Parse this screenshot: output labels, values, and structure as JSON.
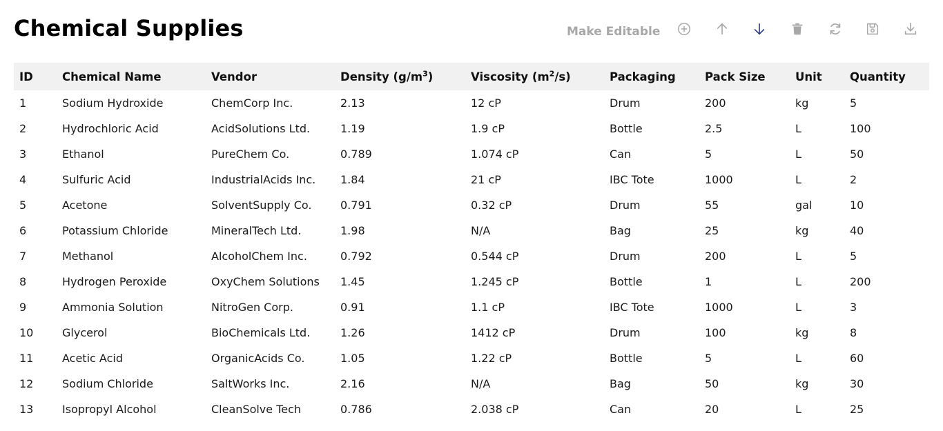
{
  "page": {
    "title": "Chemical Supplies"
  },
  "toolbar": {
    "edit_label": "Make Editable",
    "icon_color": "#a7a7a7",
    "active_icon_color": "#2a3a8f",
    "icons": [
      "add-circle-icon",
      "arrow-up-icon",
      "arrow-down-icon",
      "trash-icon",
      "refresh-icon",
      "save-icon",
      "download-icon"
    ]
  },
  "table": {
    "header_bg": "#f1f1f1",
    "columns": [
      {
        "label": "ID"
      },
      {
        "label": "Chemical Name"
      },
      {
        "label": "Vendor"
      },
      {
        "label": "Density (g/m",
        "sup": "3",
        "suffix": ")"
      },
      {
        "label": "Viscosity (m",
        "sup": "2",
        "suffix": "/s)"
      },
      {
        "label": "Packaging"
      },
      {
        "label": "Pack Size"
      },
      {
        "label": "Unit"
      },
      {
        "label": "Quantity"
      }
    ],
    "rows": [
      [
        "1",
        "Sodium Hydroxide",
        "ChemCorp Inc.",
        "2.13",
        "12 cP",
        "Drum",
        "200",
        "kg",
        "5"
      ],
      [
        "2",
        "Hydrochloric Acid",
        "AcidSolutions Ltd.",
        "1.19",
        "1.9 cP",
        "Bottle",
        "2.5",
        "L",
        "100"
      ],
      [
        "3",
        "Ethanol",
        "PureChem Co.",
        "0.789",
        "1.074 cP",
        "Can",
        "5",
        "L",
        "50"
      ],
      [
        "4",
        "Sulfuric Acid",
        "IndustrialAcids Inc.",
        "1.84",
        "21 cP",
        "IBC Tote",
        "1000",
        "L",
        "2"
      ],
      [
        "5",
        "Acetone",
        "SolventSupply Co.",
        "0.791",
        "0.32 cP",
        "Drum",
        "55",
        "gal",
        "10"
      ],
      [
        "6",
        "Potassium Chloride",
        "MineralTech Ltd.",
        "1.98",
        "N/A",
        "Bag",
        "25",
        "kg",
        "40"
      ],
      [
        "7",
        "Methanol",
        "AlcoholChem Inc.",
        "0.792",
        "0.544 cP",
        "Drum",
        "200",
        "L",
        "5"
      ],
      [
        "8",
        "Hydrogen Peroxide",
        "OxyChem Solutions",
        "1.45",
        "1.245 cP",
        "Bottle",
        "1",
        "L",
        "200"
      ],
      [
        "9",
        "Ammonia Solution",
        "NitroGen Corp.",
        "0.91",
        "1.1 cP",
        "IBC Tote",
        "1000",
        "L",
        "3"
      ],
      [
        "10",
        "Glycerol",
        "BioChemicals Ltd.",
        "1.26",
        "1412 cP",
        "Drum",
        "100",
        "kg",
        "8"
      ],
      [
        "11",
        "Acetic Acid",
        "OrganicAcids Co.",
        "1.05",
        "1.22 cP",
        "Bottle",
        "5",
        "L",
        "60"
      ],
      [
        "12",
        "Sodium Chloride",
        "SaltWorks Inc.",
        "2.16",
        "N/A",
        "Bag",
        "50",
        "kg",
        "30"
      ],
      [
        "13",
        "Isopropyl Alcohol",
        "CleanSolve Tech",
        "0.786",
        "2.038 cP",
        "Can",
        "20",
        "L",
        "25"
      ]
    ]
  }
}
